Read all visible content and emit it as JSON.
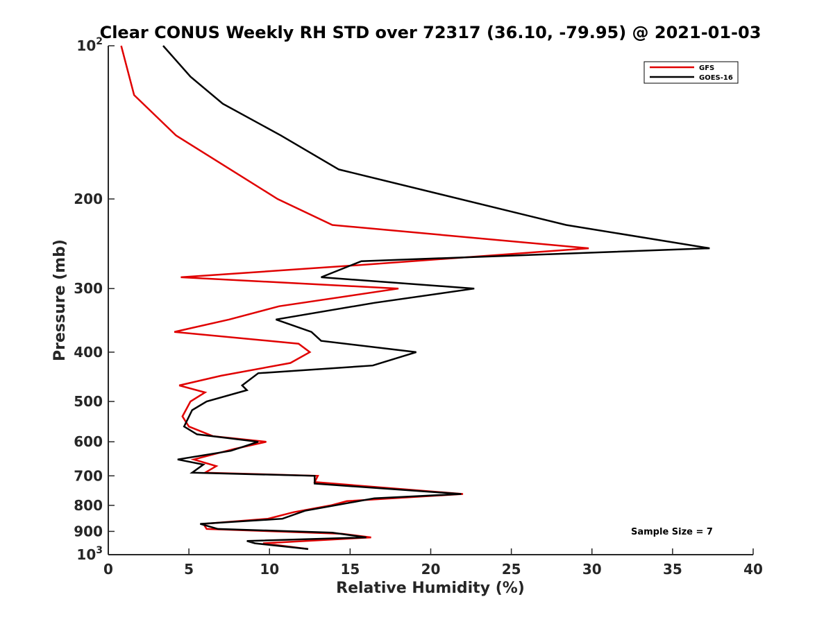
{
  "chart_data": {
    "type": "line",
    "title": "Clear CONUS Weekly RH STD over 72317 (36.10, -79.95) @ 2021-01-03",
    "xlabel": "Relative Humidity (%)",
    "ylabel": "Pressure (mb)",
    "xlim": [
      0,
      40
    ],
    "ylim": [
      100,
      1000
    ],
    "y_scale": "log",
    "y_reversed": true,
    "x_ticks": [
      0,
      5,
      10,
      15,
      20,
      25,
      30,
      35,
      40
    ],
    "x_tick_labels": [
      "0",
      "5",
      "10",
      "15",
      "20",
      "25",
      "30",
      "35",
      "40"
    ],
    "y_ticks": [
      100,
      200,
      300,
      400,
      500,
      600,
      700,
      800,
      900,
      1000
    ],
    "y_tick_labels": [
      "10^2",
      "200",
      "300",
      "400",
      "500",
      "600",
      "700",
      "800",
      "900",
      "10^3"
    ],
    "grid": false,
    "legend_position": "top-right",
    "annotation": "Sample Size = 7",
    "series": [
      {
        "name": "GFS",
        "color": "#e00000",
        "points": [
          [
            0.8,
            100
          ],
          [
            1.6,
            125
          ],
          [
            4.2,
            150
          ],
          [
            10.5,
            200
          ],
          [
            13.9,
            225
          ],
          [
            29.8,
            250
          ],
          [
            15.4,
            270
          ],
          [
            4.5,
            285
          ],
          [
            18.0,
            300
          ],
          [
            10.6,
            325
          ],
          [
            7.5,
            345
          ],
          [
            4.1,
            365
          ],
          [
            11.8,
            385
          ],
          [
            12.5,
            400
          ],
          [
            11.3,
            420
          ],
          [
            7.0,
            445
          ],
          [
            4.4,
            465
          ],
          [
            6.0,
            480
          ],
          [
            5.1,
            500
          ],
          [
            4.6,
            535
          ],
          [
            5.0,
            560
          ],
          [
            6.5,
            585
          ],
          [
            9.8,
            600
          ],
          [
            7.8,
            620
          ],
          [
            5.3,
            650
          ],
          [
            6.7,
            670
          ],
          [
            6.0,
            690
          ],
          [
            13.0,
            700
          ],
          [
            12.8,
            720
          ],
          [
            22.0,
            760
          ],
          [
            14.8,
            785
          ],
          [
            13.8,
            800
          ],
          [
            11.5,
            825
          ],
          [
            9.9,
            850
          ],
          [
            5.9,
            870
          ],
          [
            6.1,
            890
          ],
          [
            14.5,
            910
          ],
          [
            16.3,
            925
          ],
          [
            9.6,
            950
          ],
          [
            12.4,
            975
          ]
        ]
      },
      {
        "name": "GOES-16",
        "color": "#000000",
        "points": [
          [
            3.4,
            100
          ],
          [
            5.1,
            115
          ],
          [
            7.1,
            130
          ],
          [
            10.7,
            150
          ],
          [
            14.3,
            175
          ],
          [
            28.4,
            225
          ],
          [
            37.3,
            250
          ],
          [
            15.7,
            265
          ],
          [
            13.2,
            285
          ],
          [
            22.7,
            300
          ],
          [
            16.5,
            320
          ],
          [
            10.4,
            345
          ],
          [
            12.6,
            365
          ],
          [
            13.2,
            380
          ],
          [
            19.1,
            400
          ],
          [
            16.4,
            425
          ],
          [
            9.3,
            440
          ],
          [
            8.3,
            465
          ],
          [
            8.6,
            475
          ],
          [
            6.1,
            500
          ],
          [
            5.2,
            520
          ],
          [
            4.7,
            560
          ],
          [
            5.5,
            580
          ],
          [
            9.3,
            600
          ],
          [
            7.6,
            625
          ],
          [
            4.3,
            650
          ],
          [
            5.9,
            665
          ],
          [
            5.2,
            690
          ],
          [
            12.8,
            700
          ],
          [
            12.8,
            725
          ],
          [
            21.9,
            760
          ],
          [
            16.5,
            775
          ],
          [
            12.2,
            820
          ],
          [
            10.8,
            850
          ],
          [
            5.7,
            870
          ],
          [
            6.8,
            890
          ],
          [
            13.9,
            905
          ],
          [
            16.0,
            925
          ],
          [
            8.6,
            940
          ],
          [
            9.1,
            950
          ],
          [
            12.4,
            975
          ]
        ]
      }
    ]
  }
}
